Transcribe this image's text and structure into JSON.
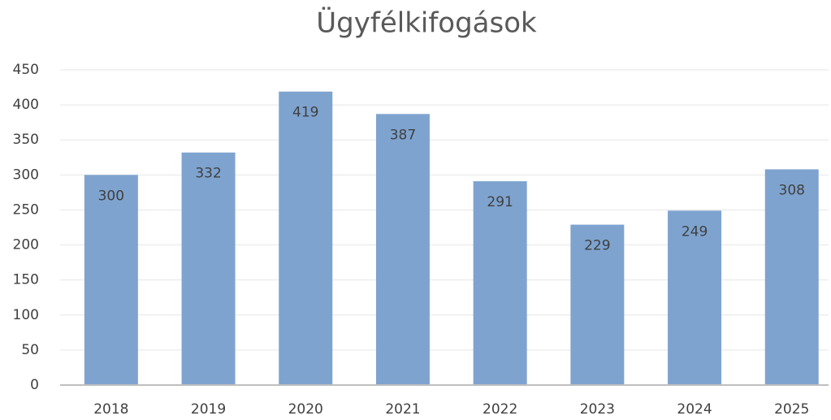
{
  "chart_data": {
    "type": "bar",
    "title": "Ügyfélkifogások",
    "categories": [
      "2018",
      "2019",
      "2020",
      "2021",
      "2022",
      "2023",
      "2024",
      "2025"
    ],
    "values": [
      300,
      332,
      419,
      387,
      291,
      229,
      249,
      308
    ],
    "color": "#7ea3cf",
    "ylim": [
      0,
      450
    ],
    "yticks": [
      0,
      50,
      100,
      150,
      200,
      250,
      300,
      350,
      400,
      450
    ],
    "grid": true
  }
}
